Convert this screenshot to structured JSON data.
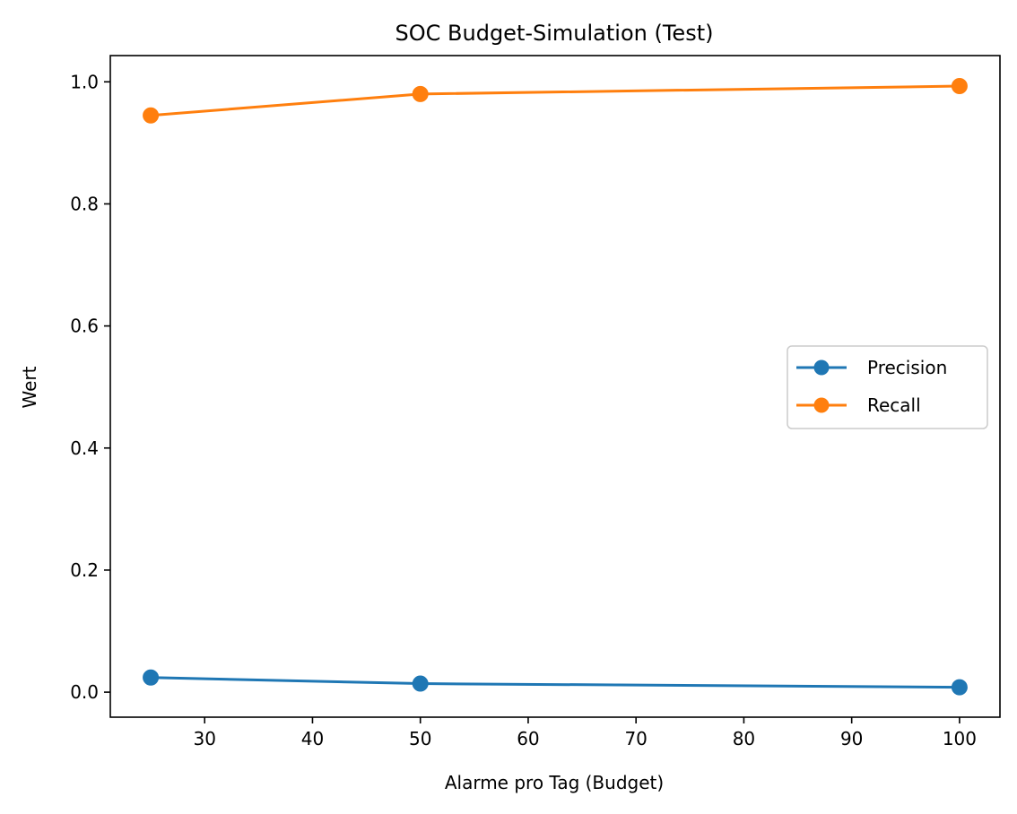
{
  "chart_data": {
    "type": "line",
    "title": "SOC Budget-Simulation (Test)",
    "xlabel": "Alarme pro Tag (Budget)",
    "ylabel": "Wert",
    "x": [
      25,
      50,
      100
    ],
    "xlim": [
      21.25,
      103.75
    ],
    "ylim": [
      -0.041,
      1.043
    ],
    "xticks": [
      30,
      40,
      50,
      60,
      70,
      80,
      90,
      100
    ],
    "yticks": [
      0.0,
      0.2,
      0.4,
      0.6,
      0.8,
      1.0
    ],
    "ytick_labels": [
      "0.0",
      "0.2",
      "0.4",
      "0.6",
      "0.8",
      "1.0"
    ],
    "series": [
      {
        "name": "Precision",
        "color": "#1f77b4",
        "marker": "circle",
        "values": [
          0.024,
          0.014,
          0.008
        ]
      },
      {
        "name": "Recall",
        "color": "#ff7f0e",
        "marker": "circle",
        "values": [
          0.945,
          0.98,
          0.993
        ]
      }
    ],
    "legend": {
      "placement": "center-right",
      "entries": [
        "Precision",
        "Recall"
      ]
    },
    "grid": false
  }
}
